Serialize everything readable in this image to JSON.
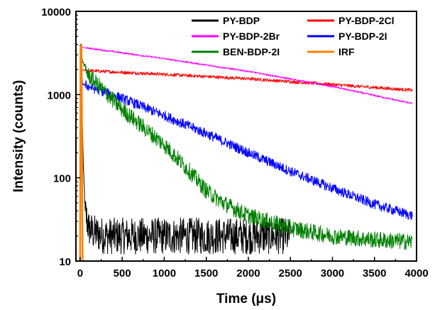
{
  "chart_data": {
    "type": "line",
    "title": "",
    "xlabel": "Time (μs)",
    "ylabel": "Intensity (counts)",
    "xlim": [
      -50,
      4000
    ],
    "ylim": [
      10,
      10000
    ],
    "yscale": "log",
    "grid": false,
    "legend_position": "top-right",
    "x_ticks": [
      0,
      500,
      1000,
      1500,
      2000,
      2500,
      3000,
      3500,
      4000
    ],
    "x_tick_labels": [
      "0",
      "500",
      "1000",
      "1500",
      "2000",
      "2500",
      "3000",
      "3500",
      "4000"
    ],
    "y_ticks": [
      10,
      100,
      1000,
      10000
    ],
    "y_tick_labels": [
      "10",
      "100",
      "1000",
      "10000"
    ],
    "legend": [
      {
        "name": "PY-BDP",
        "color": "#000000"
      },
      {
        "name": "PY-BDP-2Cl",
        "color": "#ff0000"
      },
      {
        "name": "PY-BDP-2Br",
        "color": "#ff00ff"
      },
      {
        "name": "PY-BDP-2I",
        "color": "#0000ff"
      },
      {
        "name": "BEN-BDP-2I",
        "color": "#008000"
      },
      {
        "name": "IRF",
        "color": "#ff8000"
      }
    ],
    "series": [
      {
        "name": "PY-BDP",
        "color": "#000000",
        "noise": 0.22,
        "x": [
          0,
          10,
          20,
          40,
          60,
          100,
          150,
          300,
          1000,
          2000,
          2500
        ],
        "y": [
          4000,
          2500,
          800,
          120,
          40,
          25,
          22,
          20,
          20,
          20,
          20
        ]
      },
      {
        "name": "PY-BDP-2Cl",
        "color": "#ff0000",
        "noise": 0.02,
        "x": [
          0,
          10,
          20,
          50,
          500,
          1000,
          2000,
          3000,
          3950
        ],
        "y": [
          4000,
          2600,
          2000,
          1950,
          1850,
          1750,
          1550,
          1320,
          1130
        ]
      },
      {
        "name": "PY-BDP-2Br",
        "color": "#ff00ff",
        "noise": 0.01,
        "x": [
          0,
          20,
          1000,
          2000,
          3000,
          3950
        ],
        "y": [
          4000,
          3700,
          2700,
          1900,
          1250,
          780
        ]
      },
      {
        "name": "PY-BDP-2I",
        "color": "#0000ff",
        "noise": 0.06,
        "x": [
          0,
          10,
          30,
          100,
          500,
          1000,
          1500,
          2000,
          2500,
          3000,
          3500,
          3950
        ],
        "y": [
          4000,
          2000,
          1350,
          1250,
          900,
          560,
          340,
          200,
          120,
          75,
          48,
          35
        ]
      },
      {
        "name": "BEN-BDP-2I",
        "color": "#008000",
        "noise": 0.1,
        "x": [
          0,
          10,
          30,
          100,
          500,
          1000,
          1300,
          1500,
          1700,
          2000,
          2500,
          3000,
          3500,
          3950
        ],
        "y": [
          4000,
          3300,
          2500,
          1700,
          660,
          250,
          120,
          70,
          50,
          35,
          25,
          20,
          18,
          17
        ]
      },
      {
        "name": "IRF",
        "color": "#ff8000",
        "noise": 0,
        "x": [
          0,
          5,
          15,
          20,
          25,
          30
        ],
        "y": [
          10,
          3500,
          4000,
          1000,
          40,
          10
        ]
      }
    ]
  }
}
